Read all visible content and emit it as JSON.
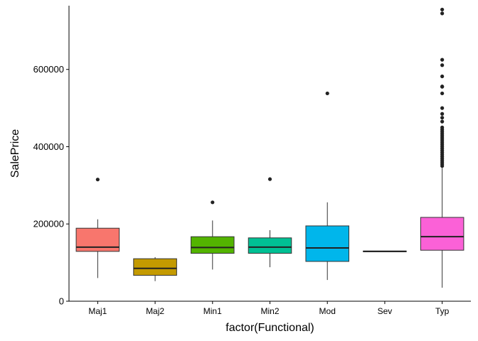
{
  "chart_data": {
    "type": "boxplot",
    "xlabel": "factor(Functional)",
    "ylabel": "SalePrice",
    "ylim": [
      0,
      765000
    ],
    "yticks": [
      0,
      200000,
      400000,
      600000
    ],
    "ytick_labels": [
      "0",
      "200000",
      "400000",
      "600000"
    ],
    "grid": false,
    "legend": "none",
    "categories": [
      "Maj1",
      "Maj2",
      "Min1",
      "Min2",
      "Mod",
      "Sev",
      "Typ"
    ],
    "boxes": [
      {
        "category": "Maj1",
        "color": "#F8766D",
        "whisker_low": 60000,
        "q1": 129000,
        "median": 140000,
        "q3": 189000,
        "whisker_high": 212000,
        "outliers": [
          315000
        ]
      },
      {
        "category": "Maj2",
        "color": "#C49A00",
        "whisker_low": 52000,
        "q1": 67000,
        "median": 85000,
        "q3": 110000,
        "whisker_high": 114000,
        "outliers": []
      },
      {
        "category": "Min1",
        "color": "#53B400",
        "whisker_low": 82000,
        "q1": 124000,
        "median": 139000,
        "q3": 167000,
        "whisker_high": 209000,
        "outliers": [
          256000
        ]
      },
      {
        "category": "Min2",
        "color": "#00C094",
        "whisker_low": 88000,
        "q1": 124000,
        "median": 140000,
        "q3": 164000,
        "whisker_high": 184000,
        "outliers": [
          316000
        ]
      },
      {
        "category": "Mod",
        "color": "#00B6EB",
        "whisker_low": 55000,
        "q1": 103000,
        "median": 138000,
        "q3": 195000,
        "whisker_high": 256000,
        "outliers": [
          538000
        ]
      },
      {
        "category": "Sev",
        "color": "#A58AFF",
        "whisker_low": 128000,
        "q1": 128000,
        "median": 129000,
        "q3": 130000,
        "whisker_high": 130000,
        "outliers": []
      },
      {
        "category": "Typ",
        "color": "#FB61D7",
        "whisker_low": 35000,
        "q1": 132000,
        "median": 167000,
        "q3": 217000,
        "whisker_high": 345000,
        "outliers": [
          350000,
          355000,
          360000,
          365000,
          370000,
          375000,
          380000,
          385000,
          390000,
          395000,
          400000,
          405000,
          410000,
          415000,
          420000,
          425000,
          430000,
          435000,
          440000,
          445000,
          450000,
          465000,
          475000,
          485000,
          500000,
          538000,
          555000,
          556000,
          582000,
          611000,
          625000,
          745000,
          755000
        ]
      }
    ]
  }
}
